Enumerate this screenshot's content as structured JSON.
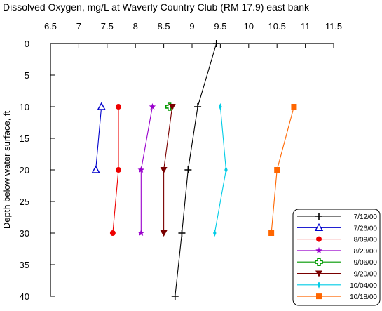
{
  "chart_data": {
    "type": "line",
    "title": "Dissolved Oxygen, mg/L at Waverly Country Club (RM 17.9) east bank",
    "ylabel": "Depth below water surface, ft",
    "xlim": [
      6.5,
      11.5
    ],
    "ylim": [
      0,
      40
    ],
    "x_ticks": [
      "6.5",
      "7",
      "7.5",
      "8",
      "8.5",
      "9",
      "9.5",
      "10",
      "10.5",
      "11",
      "11.5"
    ],
    "y_ticks": [
      "0",
      "5",
      "10",
      "15",
      "20",
      "25",
      "30",
      "35",
      "40"
    ],
    "y_inverted": true,
    "x_axis_position": "top",
    "grid": false,
    "legend_position": "bottom-right",
    "series": [
      {
        "name": "7/12/00",
        "color": "#000000",
        "marker": "plus",
        "points": [
          {
            "x": 9.43,
            "y": 0
          },
          {
            "x": 9.1,
            "y": 10
          },
          {
            "x": 8.93,
            "y": 20
          },
          {
            "x": 8.82,
            "y": 30
          },
          {
            "x": 8.7,
            "y": 40
          }
        ]
      },
      {
        "name": "7/26/00",
        "color": "#0000cc",
        "marker": "triangle-open",
        "points": [
          {
            "x": 7.4,
            "y": 10
          },
          {
            "x": 7.3,
            "y": 20
          }
        ]
      },
      {
        "name": "8/09/00",
        "color": "#ee0000",
        "marker": "circle",
        "points": [
          {
            "x": 7.7,
            "y": 10
          },
          {
            "x": 7.7,
            "y": 20
          },
          {
            "x": 7.6,
            "y": 30
          }
        ]
      },
      {
        "name": "8/23/00",
        "color": "#9900cc",
        "marker": "star",
        "points": [
          {
            "x": 8.3,
            "y": 10
          },
          {
            "x": 8.1,
            "y": 20
          },
          {
            "x": 8.1,
            "y": 30
          }
        ]
      },
      {
        "name": "9/06/00",
        "color": "#009900",
        "marker": "cross-open",
        "points": [
          {
            "x": 8.6,
            "y": 10
          }
        ]
      },
      {
        "name": "9/20/00",
        "color": "#7a0000",
        "marker": "triangle-down",
        "points": [
          {
            "x": 8.65,
            "y": 10
          },
          {
            "x": 8.5,
            "y": 20
          },
          {
            "x": 8.5,
            "y": 30
          }
        ]
      },
      {
        "name": "10/04/00",
        "color": "#00cce6",
        "marker": "diamond-thin",
        "points": [
          {
            "x": 9.5,
            "y": 10
          },
          {
            "x": 9.6,
            "y": 20
          },
          {
            "x": 9.4,
            "y": 30
          }
        ]
      },
      {
        "name": "10/18/00",
        "color": "#ff6600",
        "marker": "square",
        "points": [
          {
            "x": 10.8,
            "y": 10
          },
          {
            "x": 10.5,
            "y": 20
          },
          {
            "x": 10.4,
            "y": 30
          }
        ]
      }
    ]
  }
}
